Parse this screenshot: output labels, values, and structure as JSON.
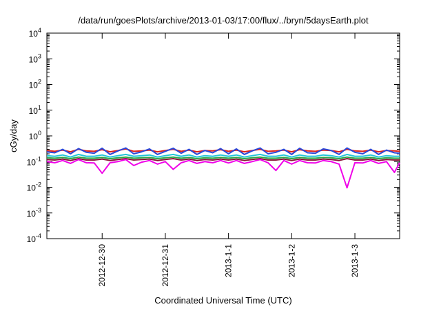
{
  "chart_data": {
    "type": "line",
    "title": "/data/run/goesPlots/archive/2013-01-03/17:00/flux/../bryn/5daysEarth.plot",
    "xlabel": "Coordinated Universal Time (UTC)",
    "ylabel": "cGy/day",
    "yscale": "log",
    "ylim": [
      0.0001,
      10000
    ],
    "xlim": [
      "2012-12-29T03:00",
      "2013-01-03T17:00"
    ],
    "grid": false,
    "legend": "none",
    "x_ticks": [
      {
        "label": "2012-12-30",
        "date": "2012-12-30T00:00"
      },
      {
        "label": "2012-12-31",
        "date": "2012-12-31T00:00"
      },
      {
        "label": "2013-1-1",
        "date": "2013-01-01T00:00"
      },
      {
        "label": "2013-1-2",
        "date": "2013-01-02T00:00"
      },
      {
        "label": "2013-1-3",
        "date": "2013-01-03T00:00"
      }
    ],
    "y_ticks": [
      {
        "base": "10",
        "exp": "-4",
        "value": 0.0001
      },
      {
        "base": "10",
        "exp": "-3",
        "value": 0.001
      },
      {
        "base": "10",
        "exp": "-2",
        "value": 0.01
      },
      {
        "base": "10",
        "exp": "-1",
        "value": 0.1
      },
      {
        "base": "10",
        "exp": "0",
        "value": 1
      },
      {
        "base": "10",
        "exp": "1",
        "value": 10
      },
      {
        "base": "10",
        "exp": "2",
        "value": 100
      },
      {
        "base": "10",
        "exp": "3",
        "value": 1000
      },
      {
        "base": "10",
        "exp": "4",
        "value": 10000
      }
    ],
    "x_samples": [
      "2012-12-29T03:00",
      "2012-12-29T06:00",
      "2012-12-29T09:00",
      "2012-12-29T12:00",
      "2012-12-29T15:00",
      "2012-12-29T18:00",
      "2012-12-29T21:00",
      "2012-12-30T00:00",
      "2012-12-30T03:00",
      "2012-12-30T06:00",
      "2012-12-30T09:00",
      "2012-12-30T12:00",
      "2012-12-30T15:00",
      "2012-12-30T18:00",
      "2012-12-30T21:00",
      "2012-12-31T00:00",
      "2012-12-31T03:00",
      "2012-12-31T06:00",
      "2012-12-31T09:00",
      "2012-12-31T12:00",
      "2012-12-31T15:00",
      "2012-12-31T18:00",
      "2012-12-31T21:00",
      "2013-01-01T00:00",
      "2013-01-01T03:00",
      "2013-01-01T06:00",
      "2013-01-01T09:00",
      "2013-01-01T12:00",
      "2013-01-01T15:00",
      "2013-01-01T18:00",
      "2013-01-01T21:00",
      "2013-01-02T00:00",
      "2013-01-02T03:00",
      "2013-01-02T06:00",
      "2013-01-02T09:00",
      "2013-01-02T12:00",
      "2013-01-02T15:00",
      "2013-01-02T18:00",
      "2013-01-02T21:00",
      "2013-01-03T00:00",
      "2013-01-03T03:00",
      "2013-01-03T06:00",
      "2013-01-03T09:00",
      "2013-01-03T12:00",
      "2013-01-03T15:00",
      "2013-01-03T17:00"
    ],
    "series": [
      {
        "color": "#e0201a",
        "values": [
          0.27,
          0.25,
          0.28,
          0.24,
          0.3,
          0.26,
          0.25,
          0.29,
          0.24,
          0.27,
          0.31,
          0.25,
          0.26,
          0.28,
          0.24,
          0.27,
          0.3,
          0.25,
          0.28,
          0.24,
          0.27,
          0.26,
          0.29,
          0.25,
          0.28,
          0.24,
          0.27,
          0.3,
          0.25,
          0.26,
          0.28,
          0.24,
          0.29,
          0.26,
          0.25,
          0.28,
          0.27,
          0.24,
          0.3,
          0.26,
          0.25,
          0.28,
          0.24,
          0.27,
          0.26,
          0.25
        ]
      },
      {
        "color": "#2b47d9",
        "values": [
          0.24,
          0.22,
          0.3,
          0.2,
          0.32,
          0.23,
          0.21,
          0.33,
          0.19,
          0.26,
          0.34,
          0.2,
          0.24,
          0.31,
          0.19,
          0.25,
          0.33,
          0.21,
          0.3,
          0.19,
          0.27,
          0.22,
          0.32,
          0.2,
          0.31,
          0.19,
          0.26,
          0.34,
          0.2,
          0.23,
          0.3,
          0.19,
          0.33,
          0.22,
          0.21,
          0.31,
          0.27,
          0.19,
          0.34,
          0.23,
          0.2,
          0.3,
          0.19,
          0.28,
          0.22,
          0.21
        ]
      },
      {
        "color": "#22c4d8",
        "values": [
          0.17,
          0.16,
          0.18,
          0.15,
          0.19,
          0.16,
          0.16,
          0.18,
          0.15,
          0.17,
          0.19,
          0.16,
          0.17,
          0.18,
          0.15,
          0.17,
          0.19,
          0.16,
          0.18,
          0.15,
          0.17,
          0.16,
          0.18,
          0.16,
          0.18,
          0.15,
          0.17,
          0.19,
          0.16,
          0.16,
          0.18,
          0.15,
          0.18,
          0.16,
          0.16,
          0.18,
          0.17,
          0.15,
          0.19,
          0.16,
          0.16,
          0.18,
          0.15,
          0.17,
          0.16,
          0.16
        ]
      },
      {
        "color": "#2aa84a",
        "values": [
          0.14,
          0.135,
          0.145,
          0.13,
          0.15,
          0.135,
          0.135,
          0.145,
          0.13,
          0.14,
          0.15,
          0.135,
          0.14,
          0.145,
          0.13,
          0.14,
          0.15,
          0.135,
          0.145,
          0.13,
          0.14,
          0.135,
          0.145,
          0.135,
          0.145,
          0.13,
          0.14,
          0.15,
          0.135,
          0.135,
          0.145,
          0.13,
          0.145,
          0.135,
          0.135,
          0.145,
          0.14,
          0.13,
          0.15,
          0.135,
          0.135,
          0.145,
          0.13,
          0.14,
          0.135,
          0.135
        ]
      },
      {
        "color": "#8a1538",
        "values": [
          0.12,
          0.115,
          0.125,
          0.11,
          0.13,
          0.115,
          0.115,
          0.125,
          0.11,
          0.12,
          0.13,
          0.115,
          0.12,
          0.125,
          0.11,
          0.12,
          0.13,
          0.115,
          0.125,
          0.11,
          0.12,
          0.115,
          0.125,
          0.115,
          0.125,
          0.11,
          0.12,
          0.13,
          0.115,
          0.115,
          0.125,
          0.11,
          0.125,
          0.115,
          0.115,
          0.125,
          0.12,
          0.11,
          0.13,
          0.115,
          0.115,
          0.125,
          0.11,
          0.12,
          0.115,
          0.115
        ]
      },
      {
        "color": "#f000e8",
        "values": [
          0.1,
          0.09,
          0.11,
          0.085,
          0.12,
          0.09,
          0.088,
          0.035,
          0.09,
          0.1,
          0.12,
          0.07,
          0.095,
          0.11,
          0.08,
          0.1,
          0.05,
          0.09,
          0.11,
          0.085,
          0.1,
          0.09,
          0.11,
          0.088,
          0.11,
          0.085,
          0.1,
          0.12,
          0.09,
          0.045,
          0.11,
          0.08,
          0.11,
          0.09,
          0.088,
          0.11,
          0.1,
          0.08,
          0.0095,
          0.09,
          0.088,
          0.11,
          0.085,
          0.1,
          0.038,
          0.09
        ]
      }
    ]
  }
}
